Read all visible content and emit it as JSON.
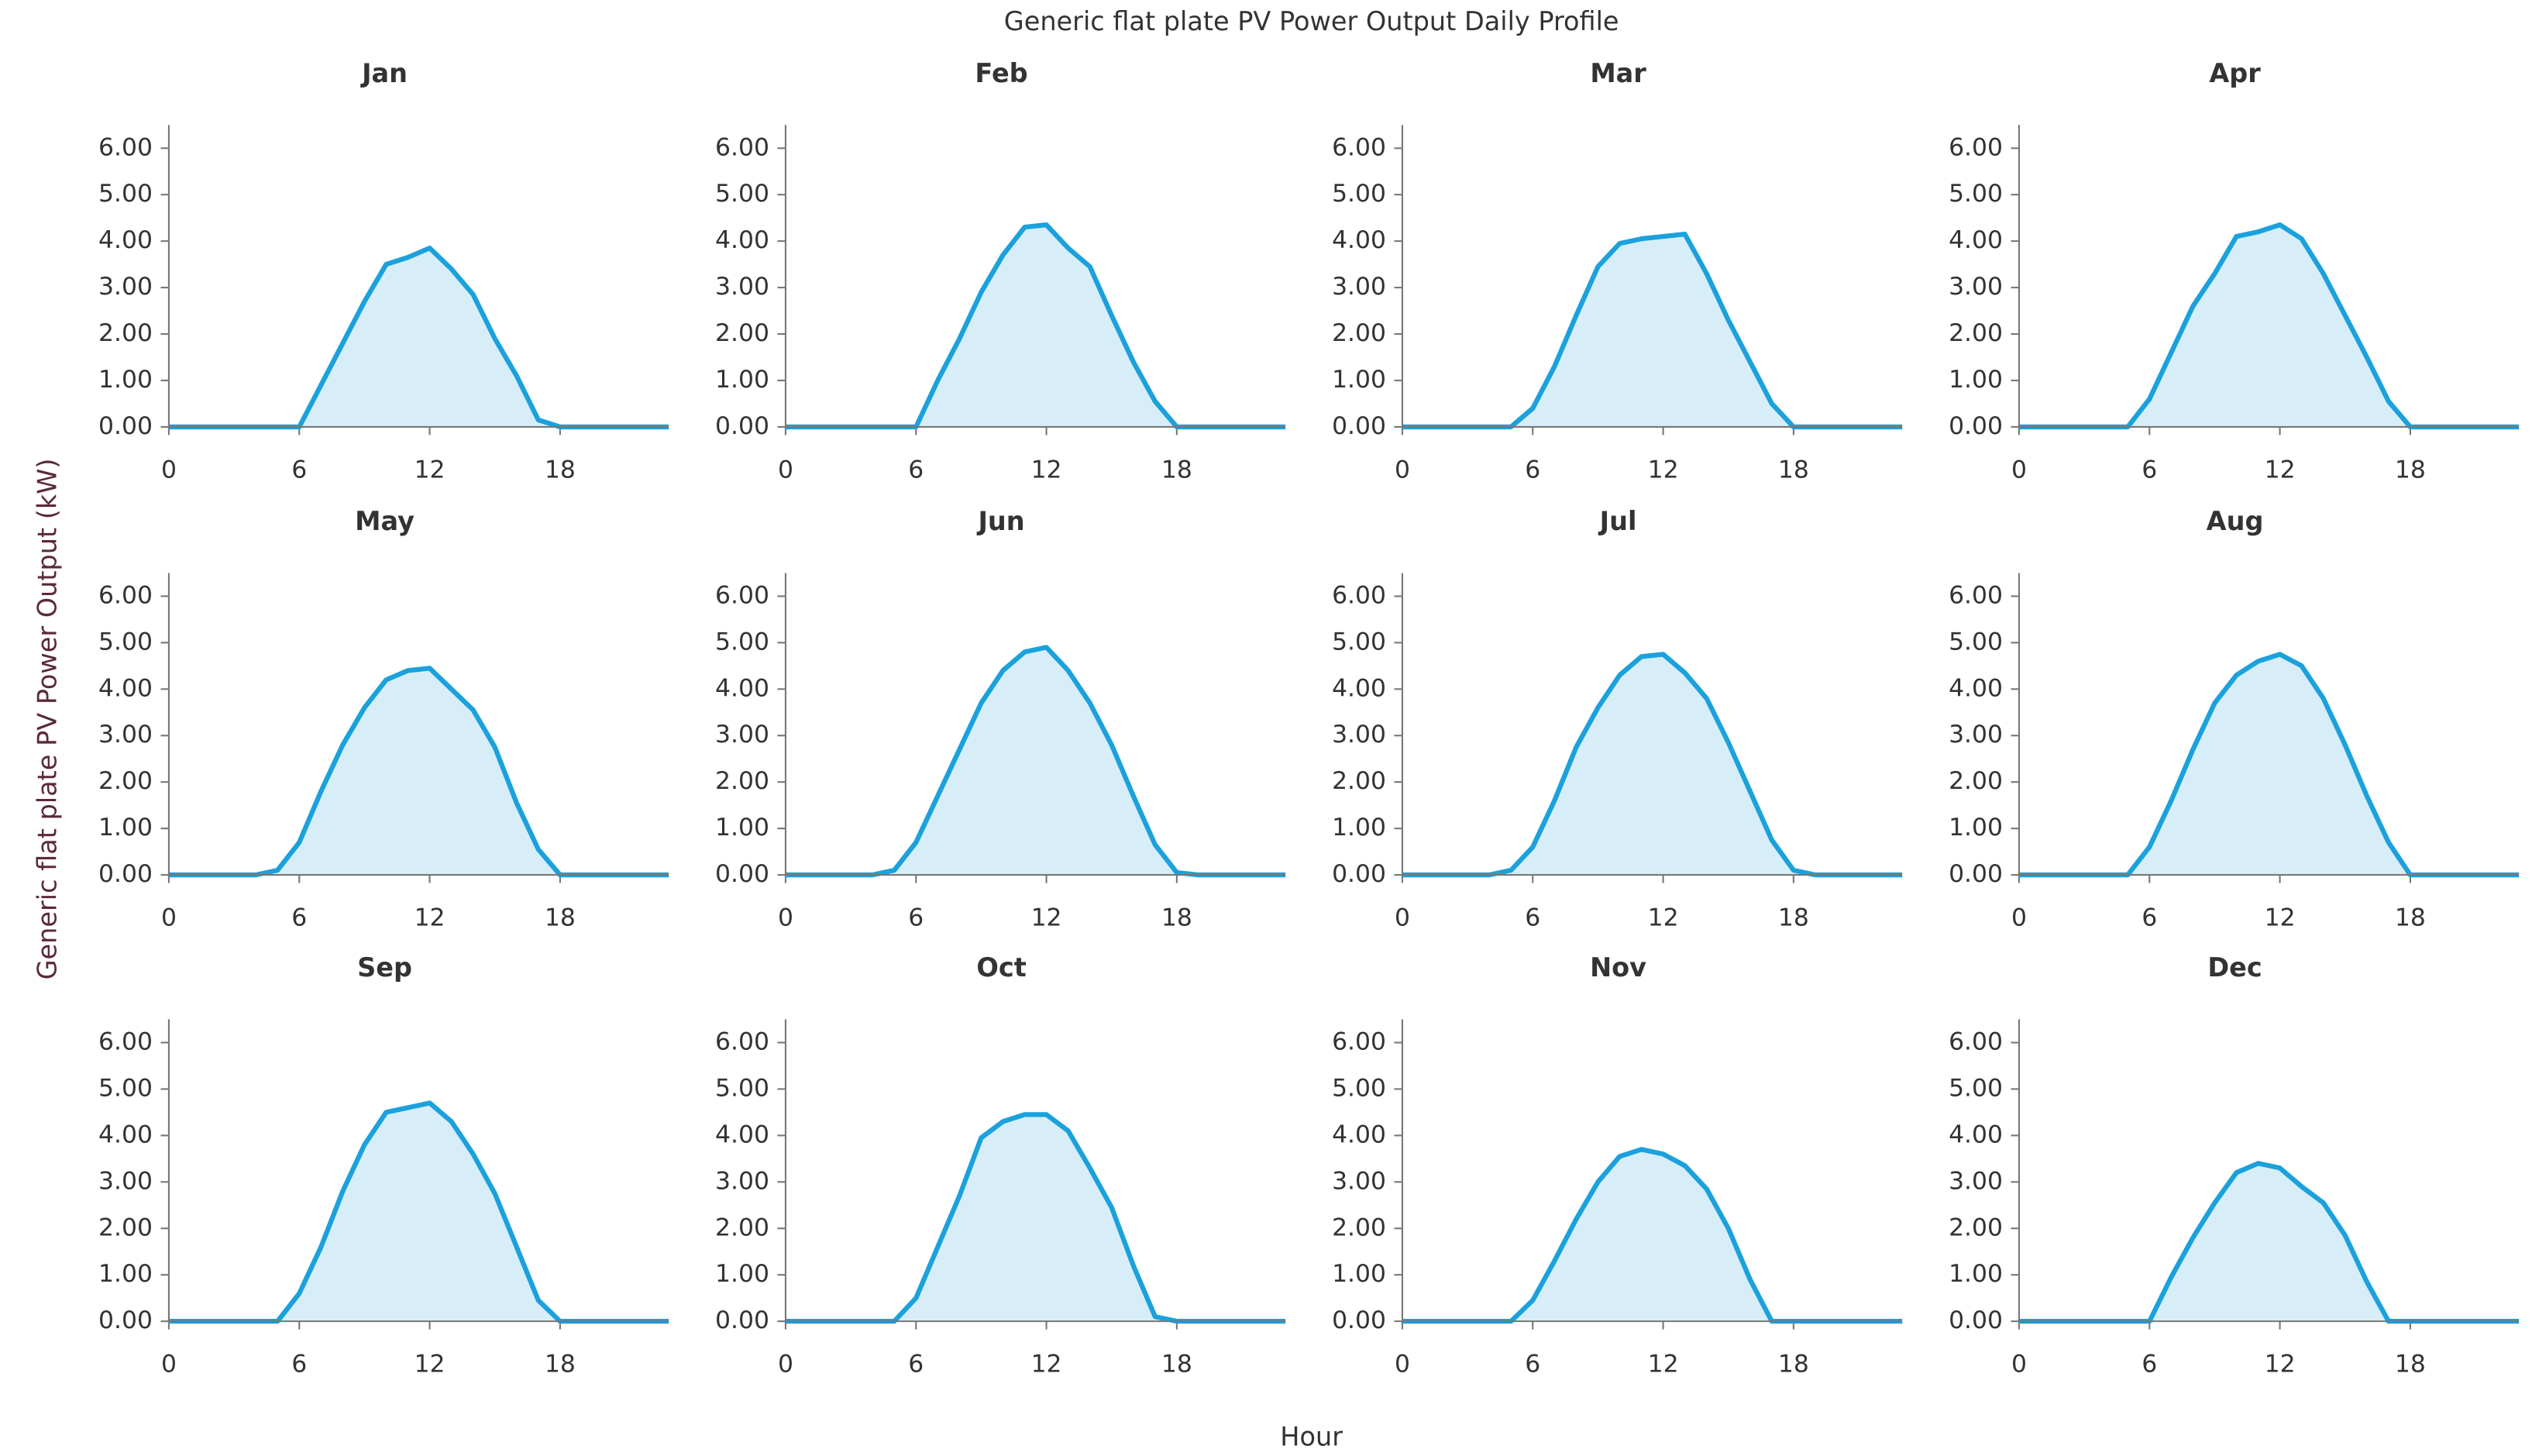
{
  "title": "Generic flat plate PV Power Output Daily Profile",
  "y_label": "Generic flat plate PV Power Output (kW)",
  "x_label": "Hour",
  "chart_data": [
    {
      "type": "area",
      "title": "Jan",
      "color": "#1ba1dc",
      "fill": "#d7eef9",
      "x": [
        0,
        1,
        2,
        3,
        4,
        5,
        6,
        7,
        8,
        9,
        10,
        11,
        12,
        13,
        14,
        15,
        16,
        17,
        18,
        19,
        20,
        21,
        22,
        23
      ],
      "values": [
        0,
        0,
        0,
        0,
        0,
        0,
        0,
        0.9,
        1.8,
        2.7,
        3.5,
        3.65,
        3.85,
        3.4,
        2.85,
        1.9,
        1.1,
        0.15,
        0,
        0,
        0,
        0,
        0,
        0
      ],
      "xlim": [
        0,
        23
      ],
      "ylim": [
        0,
        6.5
      ],
      "xticks": [
        0,
        6,
        12,
        18
      ],
      "yticks": [
        {
          "value": 0,
          "label": "0.00"
        },
        {
          "value": 1,
          "label": "1.00"
        },
        {
          "value": 2,
          "label": "2.00"
        },
        {
          "value": 3,
          "label": "3.00"
        },
        {
          "value": 4,
          "label": "4.00"
        },
        {
          "value": 5,
          "label": "5.00"
        },
        {
          "value": 6,
          "label": "6.00"
        }
      ]
    },
    {
      "type": "area",
      "title": "Feb",
      "color": "#1ba1dc",
      "fill": "#d7eef9",
      "x": [
        0,
        1,
        2,
        3,
        4,
        5,
        6,
        7,
        8,
        9,
        10,
        11,
        12,
        13,
        14,
        15,
        16,
        17,
        18,
        19,
        20,
        21,
        22,
        23
      ],
      "values": [
        0,
        0,
        0,
        0,
        0,
        0,
        0,
        1.0,
        1.9,
        2.9,
        3.7,
        4.3,
        4.35,
        3.85,
        3.45,
        2.4,
        1.4,
        0.55,
        0,
        0,
        0,
        0,
        0,
        0
      ],
      "xlim": [
        0,
        23
      ],
      "ylim": [
        0,
        6.5
      ],
      "xticks": [
        0,
        6,
        12,
        18
      ],
      "yticks": [
        {
          "value": 0,
          "label": "0.00"
        },
        {
          "value": 1,
          "label": "1.00"
        },
        {
          "value": 2,
          "label": "2.00"
        },
        {
          "value": 3,
          "label": "3.00"
        },
        {
          "value": 4,
          "label": "4.00"
        },
        {
          "value": 5,
          "label": "5.00"
        },
        {
          "value": 6,
          "label": "6.00"
        }
      ]
    },
    {
      "type": "area",
      "title": "Mar",
      "color": "#1ba1dc",
      "fill": "#d7eef9",
      "x": [
        0,
        1,
        2,
        3,
        4,
        5,
        6,
        7,
        8,
        9,
        10,
        11,
        12,
        13,
        14,
        15,
        16,
        17,
        18,
        19,
        20,
        21,
        22,
        23
      ],
      "values": [
        0,
        0,
        0,
        0,
        0,
        0,
        0.4,
        1.3,
        2.4,
        3.45,
        3.95,
        4.05,
        4.1,
        4.15,
        3.3,
        2.3,
        1.4,
        0.5,
        0,
        0,
        0,
        0,
        0,
        0
      ],
      "xlim": [
        0,
        23
      ],
      "ylim": [
        0,
        6.5
      ],
      "xticks": [
        0,
        6,
        12,
        18
      ],
      "yticks": [
        {
          "value": 0,
          "label": "0.00"
        },
        {
          "value": 1,
          "label": "1.00"
        },
        {
          "value": 2,
          "label": "2.00"
        },
        {
          "value": 3,
          "label": "3.00"
        },
        {
          "value": 4,
          "label": "4.00"
        },
        {
          "value": 5,
          "label": "5.00"
        },
        {
          "value": 6,
          "label": "6.00"
        }
      ]
    },
    {
      "type": "area",
      "title": "Apr",
      "color": "#1ba1dc",
      "fill": "#d7eef9",
      "x": [
        0,
        1,
        2,
        3,
        4,
        5,
        6,
        7,
        8,
        9,
        10,
        11,
        12,
        13,
        14,
        15,
        16,
        17,
        18,
        19,
        20,
        21,
        22,
        23
      ],
      "values": [
        0,
        0,
        0,
        0,
        0,
        0,
        0.6,
        1.6,
        2.6,
        3.3,
        4.1,
        4.2,
        4.35,
        4.05,
        3.3,
        2.4,
        1.5,
        0.55,
        0,
        0,
        0,
        0,
        0,
        0
      ],
      "xlim": [
        0,
        23
      ],
      "ylim": [
        0,
        6.5
      ],
      "xticks": [
        0,
        6,
        12,
        18
      ],
      "yticks": [
        {
          "value": 0,
          "label": "0.00"
        },
        {
          "value": 1,
          "label": "1.00"
        },
        {
          "value": 2,
          "label": "2.00"
        },
        {
          "value": 3,
          "label": "3.00"
        },
        {
          "value": 4,
          "label": "4.00"
        },
        {
          "value": 5,
          "label": "5.00"
        },
        {
          "value": 6,
          "label": "6.00"
        }
      ]
    },
    {
      "type": "area",
      "title": "May",
      "color": "#1ba1dc",
      "fill": "#d7eef9",
      "x": [
        0,
        1,
        2,
        3,
        4,
        5,
        6,
        7,
        8,
        9,
        10,
        11,
        12,
        13,
        14,
        15,
        16,
        17,
        18,
        19,
        20,
        21,
        22,
        23
      ],
      "values": [
        0,
        0,
        0,
        0,
        0,
        0.1,
        0.7,
        1.8,
        2.8,
        3.6,
        4.2,
        4.4,
        4.45,
        4.0,
        3.55,
        2.75,
        1.55,
        0.55,
        0,
        0,
        0,
        0,
        0,
        0
      ],
      "xlim": [
        0,
        23
      ],
      "ylim": [
        0,
        6.5
      ],
      "xticks": [
        0,
        6,
        12,
        18
      ],
      "yticks": [
        {
          "value": 0,
          "label": "0.00"
        },
        {
          "value": 1,
          "label": "1.00"
        },
        {
          "value": 2,
          "label": "2.00"
        },
        {
          "value": 3,
          "label": "3.00"
        },
        {
          "value": 4,
          "label": "4.00"
        },
        {
          "value": 5,
          "label": "5.00"
        },
        {
          "value": 6,
          "label": "6.00"
        }
      ]
    },
    {
      "type": "area",
      "title": "Jun",
      "color": "#1ba1dc",
      "fill": "#d7eef9",
      "x": [
        0,
        1,
        2,
        3,
        4,
        5,
        6,
        7,
        8,
        9,
        10,
        11,
        12,
        13,
        14,
        15,
        16,
        17,
        18,
        19,
        20,
        21,
        22,
        23
      ],
      "values": [
        0,
        0,
        0,
        0,
        0,
        0.1,
        0.7,
        1.7,
        2.7,
        3.7,
        4.4,
        4.8,
        4.9,
        4.4,
        3.7,
        2.8,
        1.7,
        0.65,
        0.05,
        0,
        0,
        0,
        0,
        0
      ],
      "xlim": [
        0,
        23
      ],
      "ylim": [
        0,
        6.5
      ],
      "xticks": [
        0,
        6,
        12,
        18
      ],
      "yticks": [
        {
          "value": 0,
          "label": "0.00"
        },
        {
          "value": 1,
          "label": "1.00"
        },
        {
          "value": 2,
          "label": "2.00"
        },
        {
          "value": 3,
          "label": "3.00"
        },
        {
          "value": 4,
          "label": "4.00"
        },
        {
          "value": 5,
          "label": "5.00"
        },
        {
          "value": 6,
          "label": "6.00"
        }
      ]
    },
    {
      "type": "area",
      "title": "Jul",
      "color": "#1ba1dc",
      "fill": "#d7eef9",
      "x": [
        0,
        1,
        2,
        3,
        4,
        5,
        6,
        7,
        8,
        9,
        10,
        11,
        12,
        13,
        14,
        15,
        16,
        17,
        18,
        19,
        20,
        21,
        22,
        23
      ],
      "values": [
        0,
        0,
        0,
        0,
        0,
        0.1,
        0.6,
        1.6,
        2.75,
        3.6,
        4.3,
        4.7,
        4.75,
        4.35,
        3.8,
        2.85,
        1.8,
        0.75,
        0.1,
        0,
        0,
        0,
        0,
        0
      ],
      "xlim": [
        0,
        23
      ],
      "ylim": [
        0,
        6.5
      ],
      "xticks": [
        0,
        6,
        12,
        18
      ],
      "yticks": [
        {
          "value": 0,
          "label": "0.00"
        },
        {
          "value": 1,
          "label": "1.00"
        },
        {
          "value": 2,
          "label": "2.00"
        },
        {
          "value": 3,
          "label": "3.00"
        },
        {
          "value": 4,
          "label": "4.00"
        },
        {
          "value": 5,
          "label": "5.00"
        },
        {
          "value": 6,
          "label": "6.00"
        }
      ]
    },
    {
      "type": "area",
      "title": "Aug",
      "color": "#1ba1dc",
      "fill": "#d7eef9",
      "x": [
        0,
        1,
        2,
        3,
        4,
        5,
        6,
        7,
        8,
        9,
        10,
        11,
        12,
        13,
        14,
        15,
        16,
        17,
        18,
        19,
        20,
        21,
        22,
        23
      ],
      "values": [
        0,
        0,
        0,
        0,
        0,
        0,
        0.6,
        1.6,
        2.7,
        3.7,
        4.3,
        4.6,
        4.75,
        4.5,
        3.8,
        2.8,
        1.7,
        0.7,
        0,
        0,
        0,
        0,
        0,
        0
      ],
      "xlim": [
        0,
        23
      ],
      "ylim": [
        0,
        6.5
      ],
      "xticks": [
        0,
        6,
        12,
        18
      ],
      "yticks": [
        {
          "value": 0,
          "label": "0.00"
        },
        {
          "value": 1,
          "label": "1.00"
        },
        {
          "value": 2,
          "label": "2.00"
        },
        {
          "value": 3,
          "label": "3.00"
        },
        {
          "value": 4,
          "label": "4.00"
        },
        {
          "value": 5,
          "label": "5.00"
        },
        {
          "value": 6,
          "label": "6.00"
        }
      ]
    },
    {
      "type": "area",
      "title": "Sep",
      "color": "#1ba1dc",
      "fill": "#d7eef9",
      "x": [
        0,
        1,
        2,
        3,
        4,
        5,
        6,
        7,
        8,
        9,
        10,
        11,
        12,
        13,
        14,
        15,
        16,
        17,
        18,
        19,
        20,
        21,
        22,
        23
      ],
      "values": [
        0,
        0,
        0,
        0,
        0,
        0,
        0.6,
        1.6,
        2.8,
        3.8,
        4.5,
        4.6,
        4.7,
        4.3,
        3.6,
        2.75,
        1.6,
        0.45,
        0,
        0,
        0,
        0,
        0,
        0
      ],
      "xlim": [
        0,
        23
      ],
      "ylim": [
        0,
        6.5
      ],
      "xticks": [
        0,
        6,
        12,
        18
      ],
      "yticks": [
        {
          "value": 0,
          "label": "0.00"
        },
        {
          "value": 1,
          "label": "1.00"
        },
        {
          "value": 2,
          "label": "2.00"
        },
        {
          "value": 3,
          "label": "3.00"
        },
        {
          "value": 4,
          "label": "4.00"
        },
        {
          "value": 5,
          "label": "5.00"
        },
        {
          "value": 6,
          "label": "6.00"
        }
      ]
    },
    {
      "type": "area",
      "title": "Oct",
      "color": "#1ba1dc",
      "fill": "#d7eef9",
      "x": [
        0,
        1,
        2,
        3,
        4,
        5,
        6,
        7,
        8,
        9,
        10,
        11,
        12,
        13,
        14,
        15,
        16,
        17,
        18,
        19,
        20,
        21,
        22,
        23
      ],
      "values": [
        0,
        0,
        0,
        0,
        0,
        0,
        0.5,
        1.6,
        2.7,
        3.95,
        4.3,
        4.45,
        4.45,
        4.1,
        3.3,
        2.45,
        1.2,
        0.1,
        0,
        0,
        0,
        0,
        0,
        0
      ],
      "xlim": [
        0,
        23
      ],
      "ylim": [
        0,
        6.5
      ],
      "xticks": [
        0,
        6,
        12,
        18
      ],
      "yticks": [
        {
          "value": 0,
          "label": "0.00"
        },
        {
          "value": 1,
          "label": "1.00"
        },
        {
          "value": 2,
          "label": "2.00"
        },
        {
          "value": 3,
          "label": "3.00"
        },
        {
          "value": 4,
          "label": "4.00"
        },
        {
          "value": 5,
          "label": "5.00"
        },
        {
          "value": 6,
          "label": "6.00"
        }
      ]
    },
    {
      "type": "area",
      "title": "Nov",
      "color": "#1ba1dc",
      "fill": "#d7eef9",
      "x": [
        0,
        1,
        2,
        3,
        4,
        5,
        6,
        7,
        8,
        9,
        10,
        11,
        12,
        13,
        14,
        15,
        16,
        17,
        18,
        19,
        20,
        21,
        22,
        23
      ],
      "values": [
        0,
        0,
        0,
        0,
        0,
        0,
        0.45,
        1.3,
        2.2,
        3.0,
        3.55,
        3.7,
        3.6,
        3.35,
        2.85,
        2.0,
        0.9,
        0,
        0,
        0,
        0,
        0,
        0,
        0
      ],
      "xlim": [
        0,
        23
      ],
      "ylim": [
        0,
        6.5
      ],
      "xticks": [
        0,
        6,
        12,
        18
      ],
      "yticks": [
        {
          "value": 0,
          "label": "0.00"
        },
        {
          "value": 1,
          "label": "1.00"
        },
        {
          "value": 2,
          "label": "2.00"
        },
        {
          "value": 3,
          "label": "3.00"
        },
        {
          "value": 4,
          "label": "4.00"
        },
        {
          "value": 5,
          "label": "5.00"
        },
        {
          "value": 6,
          "label": "6.00"
        }
      ]
    },
    {
      "type": "area",
      "title": "Dec",
      "color": "#1ba1dc",
      "fill": "#d7eef9",
      "x": [
        0,
        1,
        2,
        3,
        4,
        5,
        6,
        7,
        8,
        9,
        10,
        11,
        12,
        13,
        14,
        15,
        16,
        17,
        18,
        19,
        20,
        21,
        22,
        23
      ],
      "values": [
        0,
        0,
        0,
        0,
        0,
        0,
        0,
        0.95,
        1.8,
        2.55,
        3.2,
        3.4,
        3.3,
        2.9,
        2.55,
        1.85,
        0.85,
        0,
        0,
        0,
        0,
        0,
        0,
        0
      ],
      "xlim": [
        0,
        23
      ],
      "ylim": [
        0,
        6.5
      ],
      "xticks": [
        0,
        6,
        12,
        18
      ],
      "yticks": [
        {
          "value": 0,
          "label": "0.00"
        },
        {
          "value": 1,
          "label": "1.00"
        },
        {
          "value": 2,
          "label": "2.00"
        },
        {
          "value": 3,
          "label": "3.00"
        },
        {
          "value": 4,
          "label": "4.00"
        },
        {
          "value": 5,
          "label": "5.00"
        },
        {
          "value": 6,
          "label": "6.00"
        }
      ]
    }
  ]
}
